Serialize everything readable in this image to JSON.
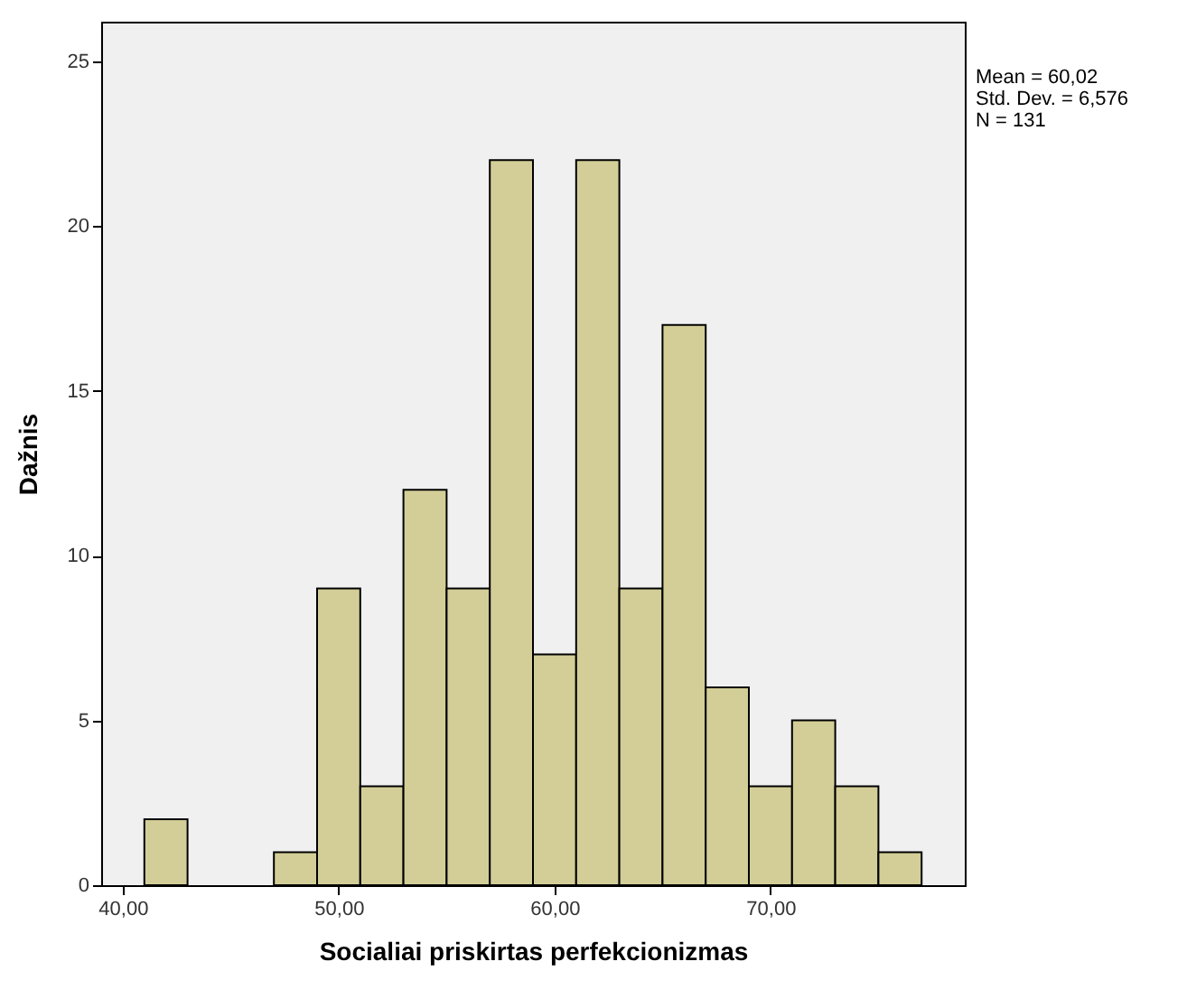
{
  "chart_data": {
    "type": "histogram",
    "xlabel": "Socialiai priskirtas perfekcionizmas",
    "ylabel": "Dažnis",
    "bins": [
      41,
      43,
      45,
      47,
      49,
      51,
      53,
      55,
      57,
      59,
      61,
      63,
      65,
      67,
      69,
      71,
      73,
      75,
      77
    ],
    "values": [
      2,
      0,
      0,
      1,
      9,
      3,
      12,
      9,
      22,
      7,
      22,
      9,
      17,
      6,
      3,
      5,
      3,
      1
    ],
    "color": "#d3ce97",
    "xlim": [
      39,
      79
    ],
    "xticks": [
      {
        "value": 40,
        "label": "40,00"
      },
      {
        "value": 50,
        "label": "50,00"
      },
      {
        "value": 60,
        "label": "60,00"
      },
      {
        "value": 70,
        "label": "70,00"
      }
    ],
    "ylim": [
      0,
      26.2
    ],
    "yticks": [
      0,
      5,
      10,
      15,
      20,
      25
    ],
    "grid": false,
    "annotations": [
      "Mean = 60,02",
      "Std. Dev. = 6,576",
      "N = 131"
    ]
  }
}
